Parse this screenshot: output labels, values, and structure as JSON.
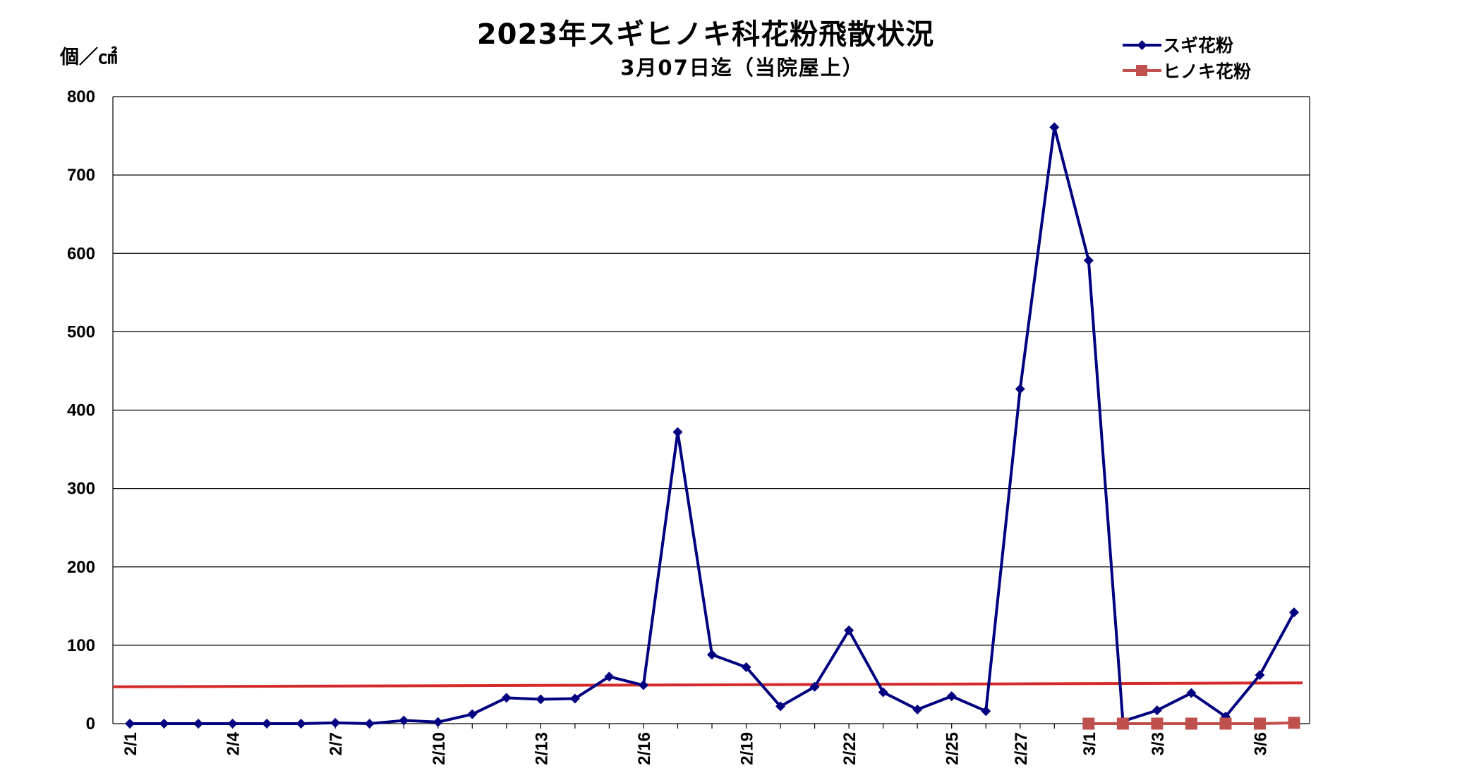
{
  "chart_data": {
    "type": "line",
    "title": "2023年スギヒノキ科花粉飛散状況",
    "subtitle": "3月07日迄（当院屋上）",
    "ylabel": "個／㎠",
    "xlabel": "",
    "ylim": [
      0,
      800
    ],
    "yticks": [
      0,
      100,
      200,
      300,
      400,
      500,
      600,
      700,
      800
    ],
    "grid": true,
    "legend_position": "top-right",
    "x": [
      "2/1",
      "2/2",
      "2/3",
      "2/4",
      "2/5",
      "2/6",
      "2/7",
      "2/8",
      "2/9",
      "2/10",
      "2/11",
      "2/12",
      "2/13",
      "2/14",
      "2/15",
      "2/16",
      "2/17",
      "2/18",
      "2/19",
      "2/20",
      "2/21",
      "2/22",
      "2/23",
      "2/24",
      "2/25",
      "2/26",
      "2/27",
      "2/28",
      "3/1",
      "3/2",
      "3/3",
      "3/4",
      "3/5",
      "3/6",
      "3/7"
    ],
    "xtick_labels": [
      "2/1",
      "2/4",
      "2/7",
      "2/10",
      "2/13",
      "2/16",
      "2/19",
      "2/22",
      "2/25",
      "2/27",
      "3/1",
      "3/3",
      "3/6"
    ],
    "series": [
      {
        "name": "スギ花粉",
        "color": "#000080",
        "marker": "diamond",
        "values": [
          0,
          0,
          0,
          0,
          0,
          0,
          1,
          0,
          4,
          2,
          12,
          33,
          31,
          32,
          60,
          49,
          372,
          88,
          72,
          22,
          47,
          119,
          40,
          18,
          35,
          16,
          427,
          761,
          591,
          3,
          17,
          39,
          9,
          62,
          142
        ]
      },
      {
        "name": "ヒノキ花粉",
        "color": "#c0504d",
        "marker": "square",
        "values": [
          null,
          null,
          null,
          null,
          null,
          null,
          null,
          null,
          null,
          null,
          null,
          null,
          null,
          null,
          null,
          null,
          null,
          null,
          null,
          null,
          null,
          null,
          null,
          null,
          null,
          null,
          null,
          null,
          0,
          0,
          0,
          0,
          0,
          0,
          1
        ]
      }
    ],
    "reference_line": {
      "color": "#d42a2a",
      "start": 47,
      "end": 52
    }
  }
}
